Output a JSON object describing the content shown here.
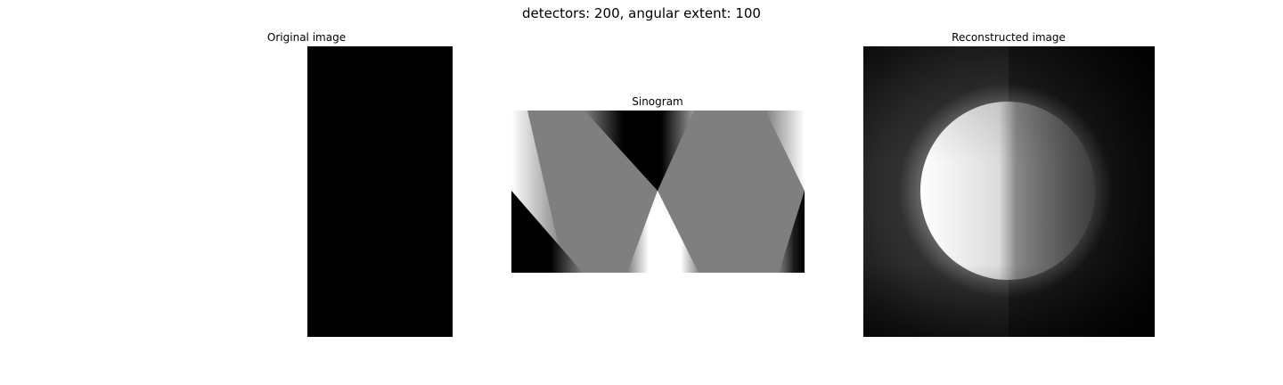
{
  "figure": {
    "suptitle": "detectors: 200, angular extent: 100"
  },
  "panels": {
    "original": {
      "title": "Original image"
    },
    "sinogram": {
      "title": "Sinogram"
    },
    "reconstruction": {
      "title": "Reconstructed image"
    }
  }
}
